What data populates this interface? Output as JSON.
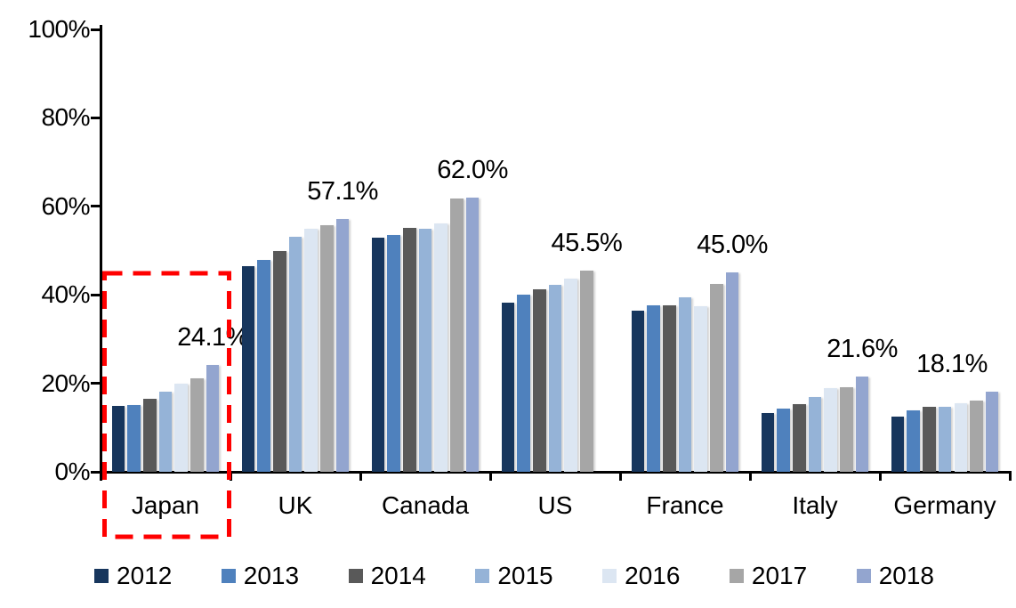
{
  "chart_data": {
    "type": "bar",
    "title": "",
    "xlabel": "",
    "ylabel": "",
    "ylim": [
      0,
      100
    ],
    "y_ticks": [
      "0%",
      "20%",
      "40%",
      "60%",
      "80%",
      "100%"
    ],
    "grid": false,
    "legend_position": "bottom",
    "categories": [
      "Japan",
      "UK",
      "Canada",
      "US",
      "France",
      "Italy",
      "Germany"
    ],
    "series": [
      {
        "name": "2012",
        "color": "#17365D",
        "values": [
          14.9,
          46.5,
          53.0,
          38.2,
          36.4,
          13.3,
          12.4
        ]
      },
      {
        "name": "2013",
        "color": "#4F81BD",
        "values": [
          15.0,
          47.8,
          53.5,
          40.1,
          37.7,
          14.2,
          13.9
        ]
      },
      {
        "name": "2014",
        "color": "#595959",
        "values": [
          16.6,
          50.0,
          55.1,
          41.2,
          37.6,
          15.3,
          14.6
        ]
      },
      {
        "name": "2015",
        "color": "#95B3D7",
        "values": [
          18.1,
          53.1,
          54.9,
          42.3,
          39.4,
          16.9,
          14.7
        ]
      },
      {
        "name": "2016",
        "color": "#DCE6F2",
        "values": [
          19.9,
          54.9,
          56.2,
          43.6,
          37.4,
          19.0,
          15.6
        ]
      },
      {
        "name": "2017",
        "color": "#A6A6A6",
        "values": [
          21.1,
          55.8,
          61.7,
          45.5,
          42.4,
          19.2,
          16.1
        ]
      },
      {
        "name": "2018",
        "color": "#93A5CF",
        "values": [
          24.1,
          57.1,
          62.0,
          null,
          45.0,
          21.6,
          18.1
        ]
      }
    ],
    "data_labels": [
      "24.1%",
      "57.1%",
      "62.0%",
      "45.5%",
      "45.0%",
      "21.6%",
      "18.1%"
    ],
    "highlight": {
      "category": "Japan",
      "style": "red-dashed-box",
      "color": "#FF0000"
    },
    "axis_color": "#000000",
    "text_color": "#000000"
  }
}
